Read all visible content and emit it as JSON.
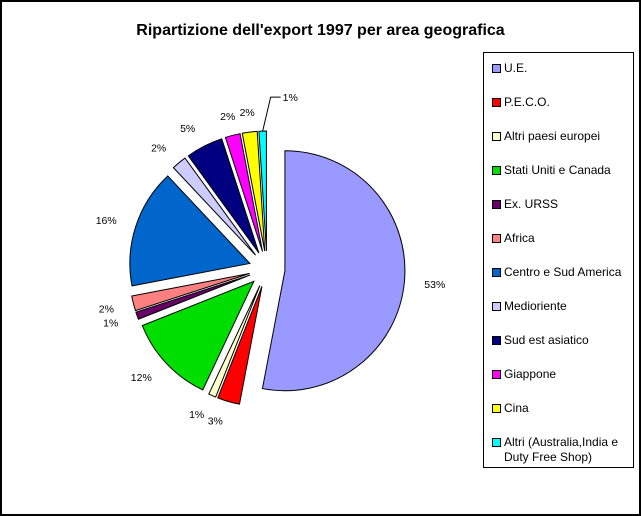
{
  "chart_data": {
    "type": "pie",
    "title": "Ripartizione dell'export 1997 per area geografica",
    "legend_position": "right",
    "exploded": true,
    "slices": [
      {
        "name": "U.E.",
        "value": 53,
        "label": "53%",
        "color": "#9999ff"
      },
      {
        "name": "P.E.C.O.",
        "value": 3,
        "label": "3%",
        "color": "#ff0000"
      },
      {
        "name": "Altri paesi europei",
        "value": 1,
        "label": "1%",
        "color": "#ffffcc"
      },
      {
        "name": "Stati Uniti e Canada",
        "value": 12,
        "label": "12%",
        "color": "#00dd00"
      },
      {
        "name": "Ex. URSS",
        "value": 1,
        "label": "1%",
        "color": "#660066"
      },
      {
        "name": "Africa",
        "value": 2,
        "label": "2%",
        "color": "#ff8080"
      },
      {
        "name": "Centro e Sud America",
        "value": 16,
        "label": "16%",
        "color": "#0066cc"
      },
      {
        "name": "Medioriente",
        "value": 2,
        "label": "2%",
        "color": "#ccccff"
      },
      {
        "name": "Sud est asiatico",
        "value": 5,
        "label": "5%",
        "color": "#000080"
      },
      {
        "name": "Giappone",
        "value": 2,
        "label": "2%",
        "color": "#ff00ff"
      },
      {
        "name": "Cina",
        "value": 2,
        "label": "2%",
        "color": "#ffff00"
      },
      {
        "name": "Altri (Australia,India e Duty Free Shop)",
        "value": 1,
        "label": "1%",
        "color": "#00ffff"
      }
    ]
  }
}
